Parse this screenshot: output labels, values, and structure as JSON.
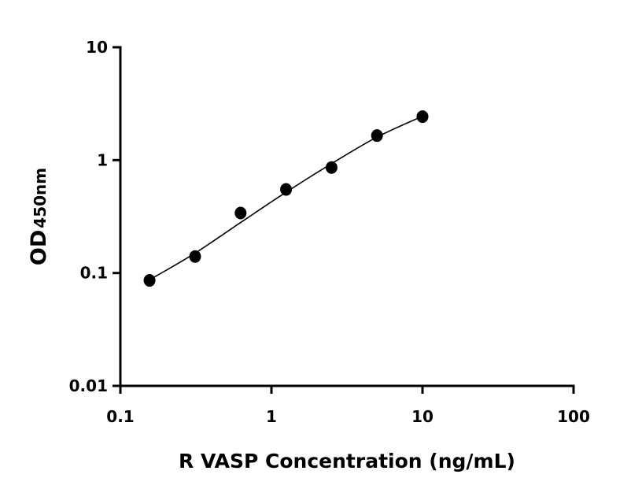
{
  "chart_data": {
    "type": "scatter",
    "x_label": "R VASP Concentration (ng/mL)",
    "y_label": "OD",
    "y_label_subscript": "450nm",
    "x_log": true,
    "y_log": true,
    "xlim": [
      0.1,
      100
    ],
    "xticks": [
      0.1,
      1,
      10,
      100
    ],
    "ylim": [
      0.01,
      10
    ],
    "yticks": [
      0.01,
      0.1,
      1,
      10
    ],
    "color": "#000000",
    "x": [
      0.156,
      0.3125,
      0.625,
      1.25,
      2.5,
      5,
      10
    ],
    "values": [
      0.086,
      0.14,
      0.34,
      0.55,
      0.86,
      1.65,
      2.43
    ],
    "fit": {
      "x": [
        0.156,
        0.3125,
        0.625,
        1.25,
        2.5,
        5,
        10
      ],
      "values": [
        0.087,
        0.15,
        0.28,
        0.52,
        0.93,
        1.6,
        2.45
      ]
    }
  }
}
